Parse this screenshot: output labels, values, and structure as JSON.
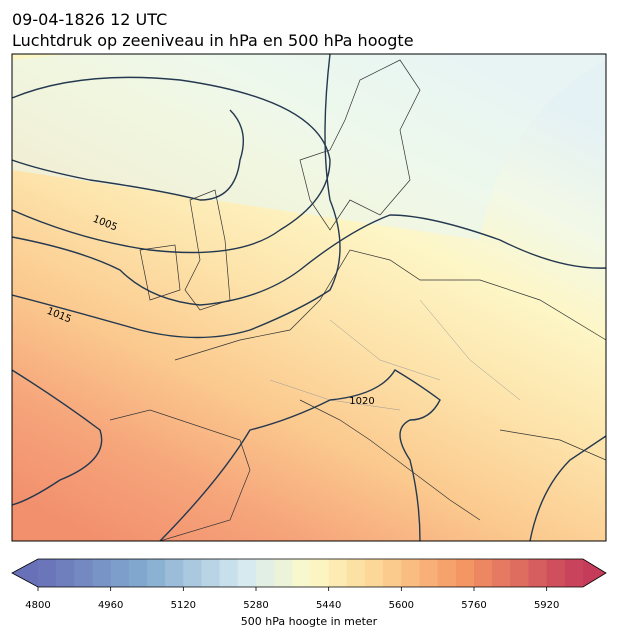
{
  "header": {
    "title": "09-04-1826 12 UTC",
    "subtitle": "Luchtdruk op zeeniveau in hPa en 500 hPa hoogte"
  },
  "map": {
    "contour_labels": [
      1005,
      1015,
      1020
    ]
  },
  "colorbar": {
    "range": [
      4800,
      6000
    ],
    "step": 40,
    "ticks": [
      4800,
      4960,
      5120,
      5280,
      5440,
      5600,
      5760,
      5920
    ],
    "label": "500 hPa hoogte in meter"
  }
}
